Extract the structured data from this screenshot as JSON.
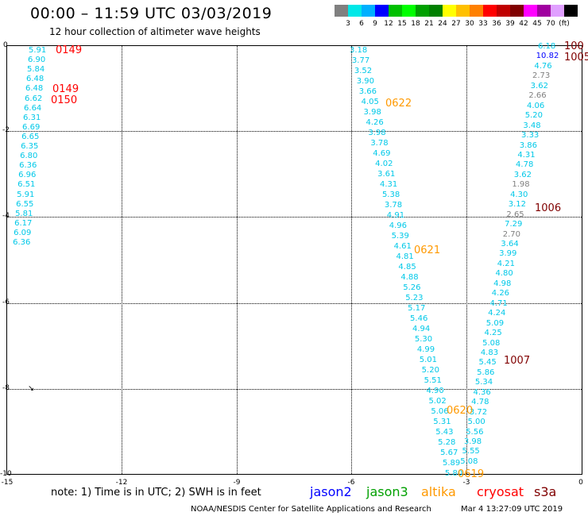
{
  "header": {
    "title": "00:00 – 11:59 UTC 03/03/2019",
    "subtitle": "12 hour collection of altimeter wave heights"
  },
  "colorbar": {
    "colors": [
      "#808080",
      "#00e8e8",
      "#00b0ff",
      "#0000ff",
      "#00c000",
      "#00ff00",
      "#00a000",
      "#008000",
      "#ffff00",
      "#ffc000",
      "#ff8000",
      "#ff0000",
      "#c00000",
      "#800000",
      "#ff00ff",
      "#a000a0",
      "#e0a0ff",
      "#000000"
    ],
    "labels": [
      "3",
      "6",
      "9",
      "12",
      "15",
      "18",
      "21",
      "24",
      "27",
      "30",
      "33",
      "36",
      "39",
      "42",
      "45",
      "70",
      "(ft)"
    ]
  },
  "axes": {
    "x_ticks": [
      "-15",
      "-12",
      "-9",
      "-6",
      "-3",
      "0"
    ],
    "y_ticks": [
      "0",
      "-2",
      "-4",
      "-6",
      "-8",
      "-10"
    ]
  },
  "tracks": {
    "left": [
      {
        "v": "5.91",
        "c": "#00c8e8"
      },
      {
        "v": "6.90",
        "c": "#00c8e8"
      },
      {
        "v": "5.84",
        "c": "#00c8e8"
      },
      {
        "v": "6.48",
        "c": "#00c8e8"
      },
      {
        "v": "6.48",
        "c": "#00c8e8"
      },
      {
        "v": "6.62",
        "c": "#00c8e8"
      },
      {
        "v": "6.64",
        "c": "#00c8e8"
      },
      {
        "v": "6.31",
        "c": "#00c8e8"
      },
      {
        "v": "6.69",
        "c": "#00c8e8"
      },
      {
        "v": "6.65",
        "c": "#00c8e8"
      },
      {
        "v": "6.35",
        "c": "#00c8e8"
      },
      {
        "v": "6.80",
        "c": "#00c8e8"
      },
      {
        "v": "6.36",
        "c": "#00c8e8"
      },
      {
        "v": "6.96",
        "c": "#00c8e8"
      },
      {
        "v": "6.51",
        "c": "#00c8e8"
      },
      {
        "v": "5.91",
        "c": "#00c8e8"
      },
      {
        "v": "6.55",
        "c": "#00c8e8"
      },
      {
        "v": "5.81",
        "c": "#00c8e8"
      },
      {
        "v": "6.17",
        "c": "#00c8e8"
      },
      {
        "v": "6.09",
        "c": "#00c8e8"
      },
      {
        "v": "6.36",
        "c": "#00c8e8"
      }
    ],
    "middle": [
      {
        "v": "3.18",
        "c": "#00c8e8"
      },
      {
        "v": "3.77",
        "c": "#00c8e8"
      },
      {
        "v": "3.52",
        "c": "#00c8e8"
      },
      {
        "v": "3.90",
        "c": "#00c8e8"
      },
      {
        "v": "3.66",
        "c": "#00c8e8"
      },
      {
        "v": "4.05",
        "c": "#00c8e8"
      },
      {
        "v": "3.98",
        "c": "#00c8e8"
      },
      {
        "v": "4.26",
        "c": "#00c8e8"
      },
      {
        "v": "3.98",
        "c": "#00c8e8"
      },
      {
        "v": "3.78",
        "c": "#00c8e8"
      },
      {
        "v": "4.69",
        "c": "#00c8e8"
      },
      {
        "v": "4.02",
        "c": "#00c8e8"
      },
      {
        "v": "3.61",
        "c": "#00c8e8"
      },
      {
        "v": "4.31",
        "c": "#00c8e8"
      },
      {
        "v": "5.38",
        "c": "#00c8e8"
      },
      {
        "v": "3.78",
        "c": "#00c8e8"
      },
      {
        "v": "4.91",
        "c": "#00c8e8"
      },
      {
        "v": "4.96",
        "c": "#00c8e8"
      },
      {
        "v": "5.39",
        "c": "#00c8e8"
      },
      {
        "v": "4.61",
        "c": "#00c8e8"
      },
      {
        "v": "4.81",
        "c": "#00c8e8"
      },
      {
        "v": "4.85",
        "c": "#00c8e8"
      },
      {
        "v": "4.88",
        "c": "#00c8e8"
      },
      {
        "v": "5.26",
        "c": "#00c8e8"
      },
      {
        "v": "5.23",
        "c": "#00c8e8"
      },
      {
        "v": "5.17",
        "c": "#00c8e8"
      },
      {
        "v": "5.46",
        "c": "#00c8e8"
      },
      {
        "v": "4.94",
        "c": "#00c8e8"
      },
      {
        "v": "5.30",
        "c": "#00c8e8"
      },
      {
        "v": "4.99",
        "c": "#00c8e8"
      },
      {
        "v": "5.01",
        "c": "#00c8e8"
      },
      {
        "v": "5.20",
        "c": "#00c8e8"
      },
      {
        "v": "5.51",
        "c": "#00c8e8"
      },
      {
        "v": "4.90",
        "c": "#00c8e8"
      },
      {
        "v": "5.02",
        "c": "#00c8e8"
      },
      {
        "v": "5.06",
        "c": "#00c8e8"
      },
      {
        "v": "5.31",
        "c": "#00c8e8"
      },
      {
        "v": "5.43",
        "c": "#00c8e8"
      },
      {
        "v": "5.28",
        "c": "#00c8e8"
      },
      {
        "v": "5.67",
        "c": "#00c8e8"
      },
      {
        "v": "5.89",
        "c": "#00c8e8"
      },
      {
        "v": "5.80",
        "c": "#00c8e8"
      }
    ],
    "right": [
      {
        "v": "6.18",
        "c": "#00c8e8"
      },
      {
        "v": "10.82",
        "c": "#0000ff"
      },
      {
        "v": "4.76",
        "c": "#00c8e8"
      },
      {
        "v": "2.73",
        "c": "#808080"
      },
      {
        "v": "3.62",
        "c": "#00c8e8"
      },
      {
        "v": "2.66",
        "c": "#808080"
      },
      {
        "v": "4.06",
        "c": "#00c8e8"
      },
      {
        "v": "5.20",
        "c": "#00c8e8"
      },
      {
        "v": "3.48",
        "c": "#00c8e8"
      },
      {
        "v": "3.33",
        "c": "#00c8e8"
      },
      {
        "v": "3.86",
        "c": "#00c8e8"
      },
      {
        "v": "4.31",
        "c": "#00c8e8"
      },
      {
        "v": "4.78",
        "c": "#00c8e8"
      },
      {
        "v": "3.62",
        "c": "#00c8e8"
      },
      {
        "v": "1.98",
        "c": "#808080"
      },
      {
        "v": "4.30",
        "c": "#00c8e8"
      },
      {
        "v": "3.12",
        "c": "#00c8e8"
      },
      {
        "v": "2.65",
        "c": "#808080"
      },
      {
        "v": "7.29",
        "c": "#00c8e8"
      },
      {
        "v": "2.70",
        "c": "#808080"
      },
      {
        "v": "3.64",
        "c": "#00c8e8"
      },
      {
        "v": "3.99",
        "c": "#00c8e8"
      },
      {
        "v": "4.21",
        "c": "#00c8e8"
      },
      {
        "v": "4.80",
        "c": "#00c8e8"
      },
      {
        "v": "4.98",
        "c": "#00c8e8"
      },
      {
        "v": "4.26",
        "c": "#00c8e8"
      },
      {
        "v": "4.71",
        "c": "#00c8e8"
      },
      {
        "v": "4.24",
        "c": "#00c8e8"
      },
      {
        "v": "5.09",
        "c": "#00c8e8"
      },
      {
        "v": "4.25",
        "c": "#00c8e8"
      },
      {
        "v": "5.08",
        "c": "#00c8e8"
      },
      {
        "v": "4.83",
        "c": "#00c8e8"
      },
      {
        "v": "5.45",
        "c": "#00c8e8"
      },
      {
        "v": "5.86",
        "c": "#00c8e8"
      },
      {
        "v": "5.34",
        "c": "#00c8e8"
      },
      {
        "v": "4.36",
        "c": "#00c8e8"
      },
      {
        "v": "4.78",
        "c": "#00c8e8"
      },
      {
        "v": "3.72",
        "c": "#00c8e8"
      },
      {
        "v": "5.00",
        "c": "#00c8e8"
      },
      {
        "v": "5.56",
        "c": "#00c8e8"
      },
      {
        "v": "3.98",
        "c": "#00c8e8"
      },
      {
        "v": "5.55",
        "c": "#00c8e8"
      },
      {
        "v": "5.08",
        "c": "#00c8e8"
      }
    ]
  },
  "pass_labels": [
    {
      "t": "0149",
      "c": "#ff0000"
    },
    {
      "t": "0149",
      "c": "#ff0000"
    },
    {
      "t": "0150",
      "c": "#ff0000"
    },
    {
      "t": "0622",
      "c": "#ff9900"
    },
    {
      "t": "0621",
      "c": "#ff9900"
    },
    {
      "t": "0620",
      "c": "#ff9900"
    },
    {
      "t": "0619",
      "c": "#ff9900"
    },
    {
      "t": "100",
      "c": "#800000"
    },
    {
      "t": "1005",
      "c": "#800000"
    },
    {
      "t": "1006",
      "c": "#800000"
    },
    {
      "t": "1007",
      "c": "#800000"
    }
  ],
  "note": "note:  1) Time is in UTC;  2) SWH is in feet",
  "legend": [
    {
      "label": "jason2",
      "color": "#0000ff"
    },
    {
      "label": "jason3",
      "color": "#00a000"
    },
    {
      "label": "altika",
      "color": "#ff9900"
    },
    {
      "label": "cryosat",
      "color": "#ff0000"
    },
    {
      "label": "s3a",
      "color": "#800000"
    }
  ],
  "footer": {
    "credit": "NOAA/NESDIS Center for Satellite Applications and Research",
    "timestamp": "Mar  4 13:27:09 UTC 2019"
  }
}
